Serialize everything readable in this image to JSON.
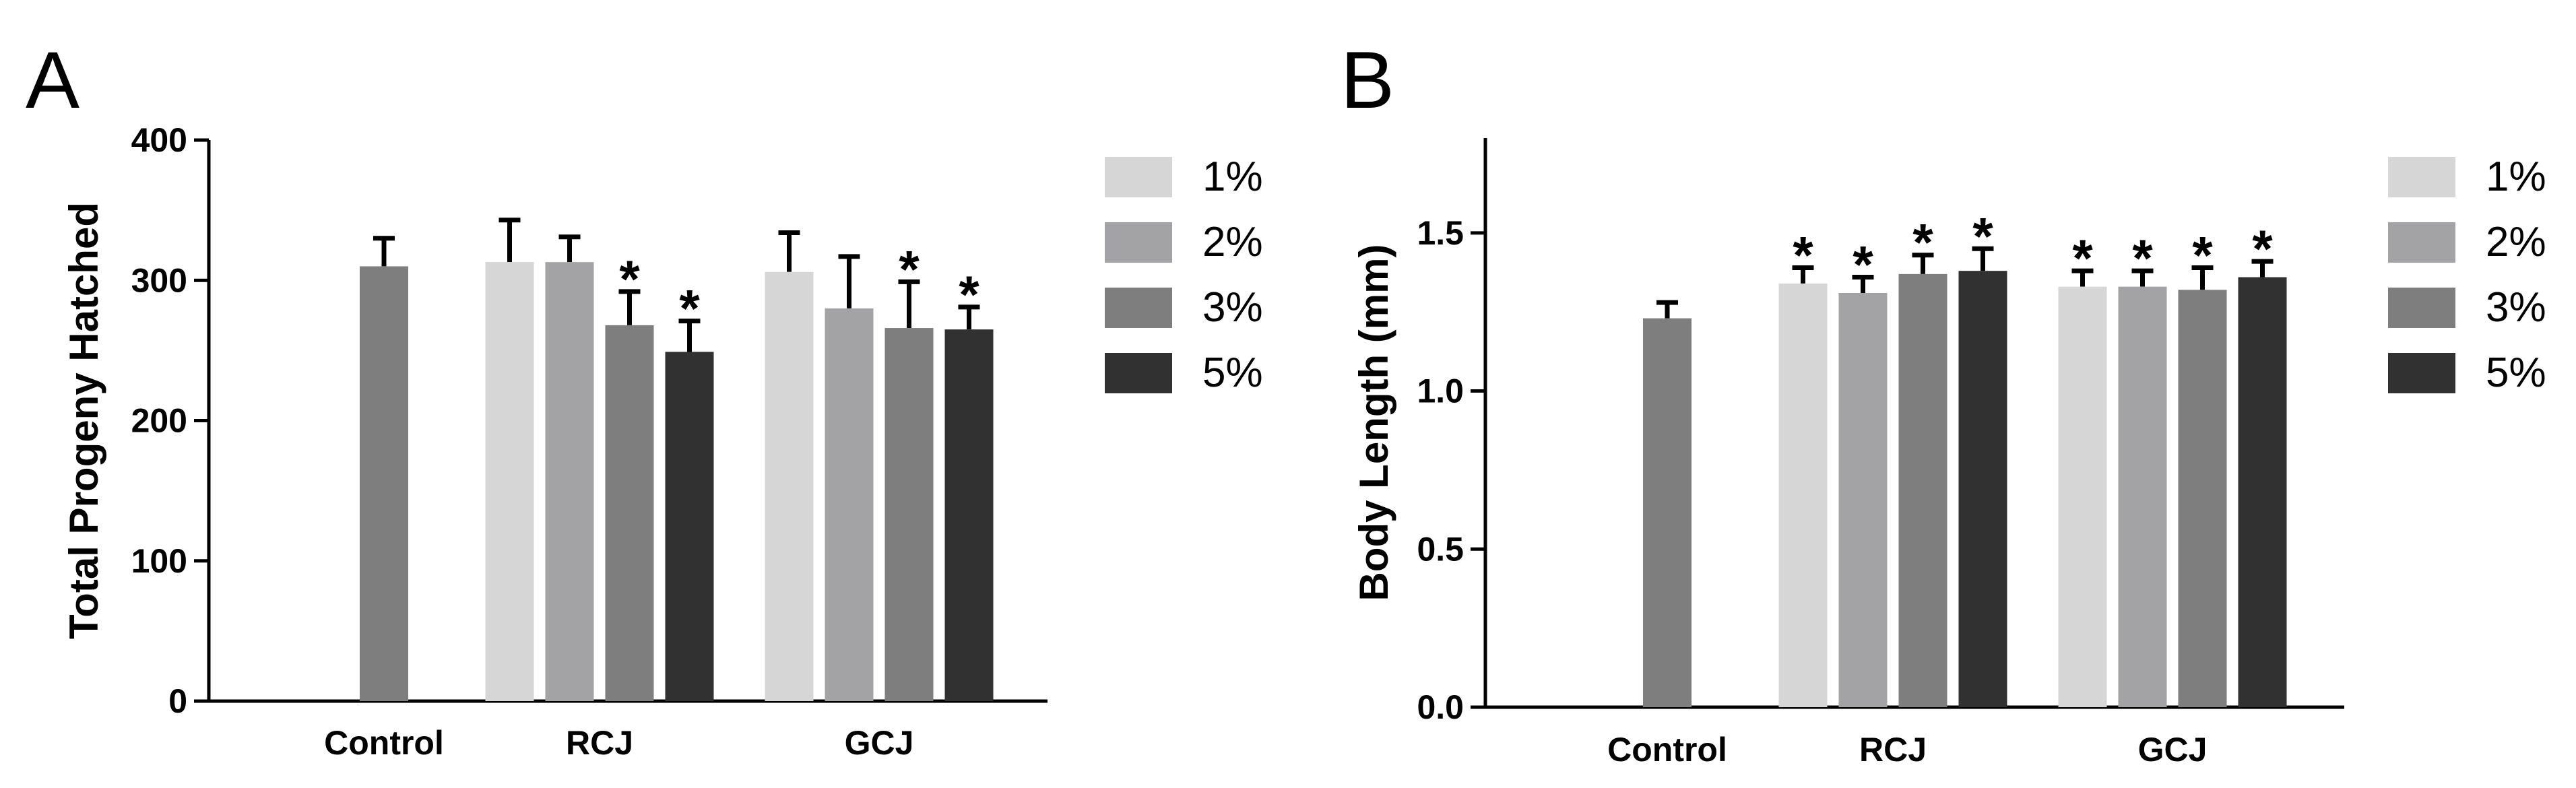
{
  "chart_data": [
    {
      "panel_label": "A",
      "type": "bar",
      "ylabel": "Total Progeny Hatched",
      "xlabel": "",
      "ylim": [
        0,
        400
      ],
      "yticks": [
        0,
        100,
        200,
        300,
        400
      ],
      "categories": [
        "Control",
        "RCJ",
        "GCJ"
      ],
      "control": {
        "value": 310,
        "error": 20
      },
      "series": [
        {
          "name": "1%",
          "color": "#d6d6d6",
          "values": [
            null,
            313,
            306
          ],
          "errors": [
            null,
            30,
            28
          ],
          "significant": [
            false,
            false,
            false
          ]
        },
        {
          "name": "2%",
          "color": "#a3a3a6",
          "values": [
            null,
            313,
            280
          ],
          "errors": [
            null,
            18,
            37
          ],
          "significant": [
            false,
            false,
            false
          ]
        },
        {
          "name": "3%",
          "color": "#7e7e7e",
          "values": [
            null,
            268,
            266
          ],
          "errors": [
            null,
            24,
            33
          ],
          "significant": [
            false,
            true,
            true
          ]
        },
        {
          "name": "5%",
          "color": "#313131",
          "values": [
            null,
            249,
            265
          ],
          "errors": [
            null,
            22,
            16
          ],
          "significant": [
            false,
            true,
            true
          ]
        }
      ],
      "control_color": "#7e7e7e",
      "significance_marker": "*",
      "legend": [
        "1%",
        "2%",
        "3%",
        "5%"
      ]
    },
    {
      "panel_label": "B",
      "type": "bar",
      "ylabel": "Body Length (mm)",
      "xlabel": "",
      "ylim": [
        0,
        1.8
      ],
      "yticks": [
        0.0,
        0.5,
        1.0,
        1.5
      ],
      "ytick_labels": [
        "0.0",
        "0.5",
        "1.0",
        "1.5"
      ],
      "categories": [
        "Control",
        "RCJ",
        "GCJ"
      ],
      "control": {
        "value": 1.23,
        "error": 0.05
      },
      "series": [
        {
          "name": "1%",
          "color": "#d6d6d6",
          "values": [
            null,
            1.34,
            1.33
          ],
          "errors": [
            null,
            0.05,
            0.05
          ],
          "significant": [
            false,
            true,
            true
          ]
        },
        {
          "name": "2%",
          "color": "#a3a3a6",
          "values": [
            null,
            1.31,
            1.33
          ],
          "errors": [
            null,
            0.05,
            0.05
          ],
          "significant": [
            false,
            true,
            true
          ]
        },
        {
          "name": "3%",
          "color": "#7e7e7e",
          "values": [
            null,
            1.37,
            1.32
          ],
          "errors": [
            null,
            0.06,
            0.07
          ],
          "significant": [
            false,
            true,
            true
          ]
        },
        {
          "name": "5%",
          "color": "#313131",
          "values": [
            null,
            1.38,
            1.36
          ],
          "errors": [
            null,
            0.07,
            0.05
          ],
          "significant": [
            false,
            true,
            true
          ]
        }
      ],
      "control_color": "#7e7e7e",
      "significance_marker": "*",
      "legend": [
        "1%",
        "2%",
        "3%",
        "5%"
      ]
    }
  ]
}
